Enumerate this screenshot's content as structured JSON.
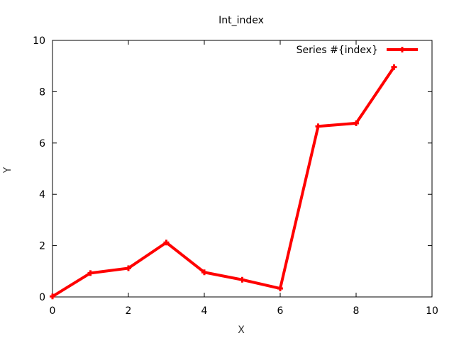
{
  "chart_data": {
    "type": "line",
    "title": "Int_index",
    "xlabel": "X",
    "ylabel": "Y",
    "xlim": [
      0,
      10
    ],
    "ylim": [
      0,
      10
    ],
    "xticks": [
      0,
      2,
      4,
      6,
      8,
      10
    ],
    "yticks": [
      0,
      2,
      4,
      6,
      8,
      10
    ],
    "grid": false,
    "legend_position": "top-right",
    "series": [
      {
        "name": "Series #{index}",
        "color": "#ff0000",
        "marker": "plus",
        "x": [
          0,
          1,
          2,
          3,
          4,
          5,
          6,
          7,
          8,
          9
        ],
        "y": [
          0.02,
          0.93,
          1.12,
          2.12,
          0.96,
          0.67,
          0.33,
          6.65,
          6.77,
          8.96
        ]
      }
    ]
  }
}
